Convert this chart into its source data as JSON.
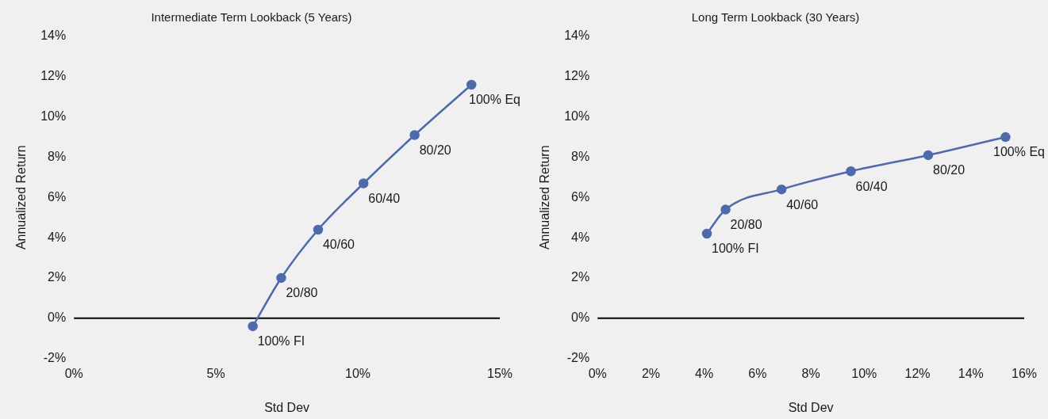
{
  "chart_data": [
    {
      "type": "line",
      "title": "Intermediate Term Lookback (5 Years)",
      "xlabel": "Std Dev",
      "ylabel": "Annualized Return",
      "series": [
        {
          "color": "#4e6aaa",
          "x": [
            6.3,
            7.3,
            8.6,
            10.2,
            12.0,
            14.0
          ],
          "values": [
            -0.4,
            2.0,
            4.4,
            6.7,
            9.1,
            11.6
          ]
        }
      ],
      "xlim": [
        0,
        15
      ],
      "xticks": [
        {
          "value": 0,
          "label": "0%"
        },
        {
          "value": 5,
          "label": "5%"
        },
        {
          "value": 10,
          "label": "10%"
        },
        {
          "value": 15,
          "label": "15%"
        }
      ],
      "ylim": [
        -2,
        14
      ],
      "yticks": [
        {
          "value": -2,
          "label": "-2%"
        },
        {
          "value": 0,
          "label": "0%"
        },
        {
          "value": 2,
          "label": "2%"
        },
        {
          "value": 4,
          "label": "4%"
        },
        {
          "value": 6,
          "label": "6%"
        },
        {
          "value": 8,
          "label": "8%"
        },
        {
          "value": 10,
          "label": "10%"
        },
        {
          "value": 12,
          "label": "12%"
        },
        {
          "value": 14,
          "label": "14%"
        }
      ],
      "ref_lines": [
        {
          "axis": "y",
          "value": 0,
          "color": "#000000"
        }
      ],
      "annotations": [
        {
          "text": "100% FI",
          "x": 6.3,
          "y": -0.4
        },
        {
          "text": "20/80",
          "x": 7.3,
          "y": 2.0
        },
        {
          "text": "40/60",
          "x": 8.6,
          "y": 4.4
        },
        {
          "text": "60/40",
          "x": 10.2,
          "y": 6.7
        },
        {
          "text": "80/20",
          "x": 12.0,
          "y": 9.1
        },
        {
          "text": "100% Eq",
          "x": 14.0,
          "y": 11.6
        }
      ],
      "grid": false,
      "legend": false,
      "marker": "circle",
      "line_style": "solid"
    },
    {
      "type": "line",
      "title": "Long Term Lookback (30 Years)",
      "xlabel": "Std Dev",
      "ylabel": "Annualized Return",
      "series": [
        {
          "color": "#4e6aaa",
          "x": [
            4.1,
            4.8,
            6.9,
            9.5,
            12.4,
            15.3
          ],
          "values": [
            4.2,
            5.4,
            6.4,
            7.3,
            8.1,
            9.0
          ]
        }
      ],
      "xlim": [
        0,
        16
      ],
      "xticks": [
        {
          "value": 0,
          "label": "0%"
        },
        {
          "value": 2,
          "label": "2%"
        },
        {
          "value": 4,
          "label": "4%"
        },
        {
          "value": 6,
          "label": "6%"
        },
        {
          "value": 8,
          "label": "8%"
        },
        {
          "value": 10,
          "label": "10%"
        },
        {
          "value": 12,
          "label": "12%"
        },
        {
          "value": 14,
          "label": "14%"
        },
        {
          "value": 16,
          "label": "16%"
        }
      ],
      "ylim": [
        -2,
        14
      ],
      "yticks": [
        {
          "value": -2,
          "label": "-2%"
        },
        {
          "value": 0,
          "label": "0%"
        },
        {
          "value": 2,
          "label": "2%"
        },
        {
          "value": 4,
          "label": "4%"
        },
        {
          "value": 6,
          "label": "6%"
        },
        {
          "value": 8,
          "label": "8%"
        },
        {
          "value": 10,
          "label": "10%"
        },
        {
          "value": 12,
          "label": "12%"
        },
        {
          "value": 14,
          "label": "14%"
        }
      ],
      "ref_lines": [
        {
          "axis": "y",
          "value": 0,
          "color": "#000000"
        }
      ],
      "annotations": [
        {
          "text": "100% FI",
          "x": 4.1,
          "y": 4.2
        },
        {
          "text": "20/80",
          "x": 4.8,
          "y": 5.4
        },
        {
          "text": "40/60",
          "x": 6.9,
          "y": 6.4
        },
        {
          "text": "60/40",
          "x": 9.5,
          "y": 7.3
        },
        {
          "text": "80/20",
          "x": 12.4,
          "y": 8.1
        },
        {
          "text": "100% Eq",
          "x": 15.3,
          "y": 9.0
        }
      ],
      "grid": false,
      "legend": false,
      "marker": "circle",
      "line_style": "solid"
    }
  ]
}
